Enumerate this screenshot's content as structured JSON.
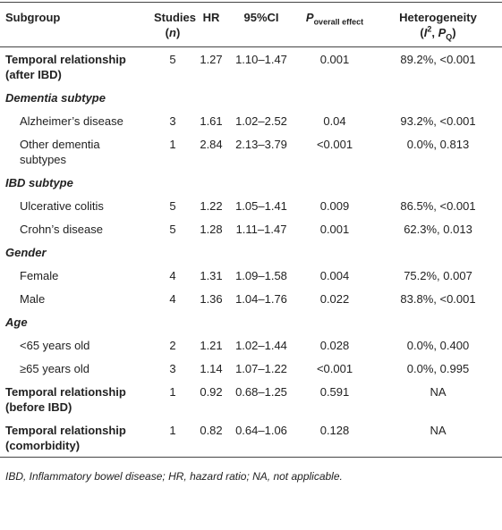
{
  "table": {
    "header": [
      [
        "Subgroup"
      ],
      [
        "Studies",
        "(",
        "n",
        ")"
      ],
      [
        "HR"
      ],
      [
        "95%CI"
      ],
      [
        "P",
        "overall effect"
      ],
      [
        "Heterogeneity",
        "(",
        "I",
        "2",
        ", ",
        "P",
        "Q",
        ")"
      ]
    ],
    "rows": [
      [
        "Temporal relationship (after IBD)",
        "5",
        "1.27",
        "1.10–1.47",
        "0.001",
        "89.2%, <0.001"
      ],
      [
        "Dementia subtype"
      ],
      [
        "Alzheimer’s disease",
        "3",
        "1.61",
        "1.02–2.52",
        "0.04",
        "93.2%, <0.001"
      ],
      [
        "Other dementia subtypes",
        "1",
        "2.84",
        "2.13–3.79",
        "<0.001",
        "0.0%, 0.813"
      ],
      [
        "IBD subtype"
      ],
      [
        "Ulcerative colitis",
        "5",
        "1.22",
        "1.05–1.41",
        "0.009",
        "86.5%, <0.001"
      ],
      [
        "Crohn’s disease",
        "5",
        "1.28",
        "1.11–1.47",
        "0.001",
        "62.3%, 0.013"
      ],
      [
        "Gender"
      ],
      [
        "Female",
        "4",
        "1.31",
        "1.09–1.58",
        "0.004",
        "75.2%, 0.007"
      ],
      [
        "Male",
        "4",
        "1.36",
        "1.04–1.76",
        "0.022",
        "83.8%, <0.001"
      ],
      [
        "Age"
      ],
      [
        "<65 years old",
        "2",
        "1.21",
        "1.02–1.44",
        "0.028",
        "0.0%, 0.400"
      ],
      [
        "≥65 years old",
        "3",
        "1.14",
        "1.07–1.22",
        "<0.001",
        "0.0%, 0.995"
      ],
      [
        "Temporal relationship (before IBD)",
        "1",
        "0.92",
        "0.68–1.25",
        "0.591",
        "NA"
      ],
      [
        "Temporal relationship (comorbidity)",
        "1",
        "0.82",
        "0.64–1.06",
        "0.128",
        "NA"
      ]
    ],
    "footnote": "IBD, Inflammatory bowel disease; HR, hazard ratio; NA, not applicable."
  }
}
